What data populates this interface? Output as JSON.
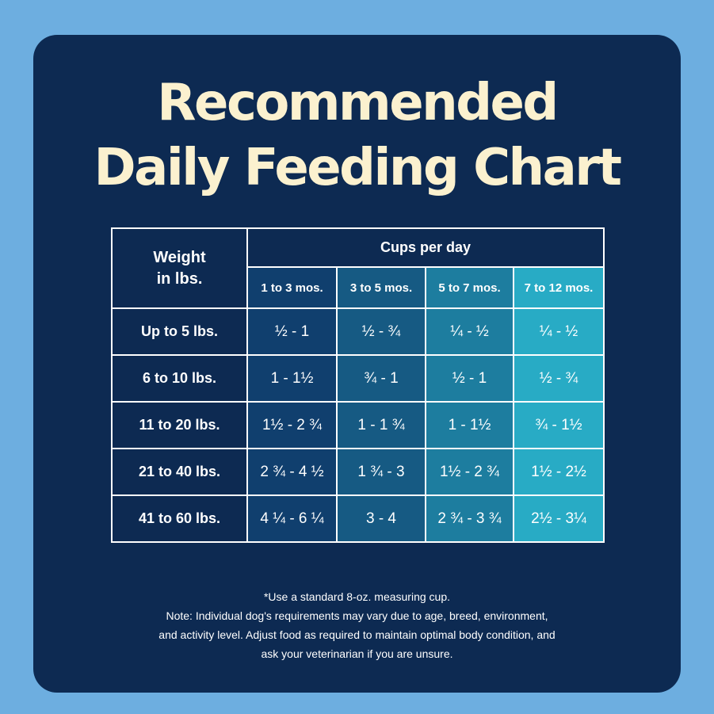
{
  "title": {
    "line1": "Recommended",
    "line2": "Daily Feeding Chart"
  },
  "table": {
    "weight_header_line1": "Weight",
    "weight_header_line2": "in lbs.",
    "group_header": "Cups per day",
    "age_columns": [
      "1 to 3 mos.",
      "3 to 5 mos.",
      "5 to 7 mos.",
      "7 to 12 mos."
    ],
    "rows": [
      {
        "weight": "Up to 5 lbs.",
        "values": [
          "½ - 1",
          "½ - ¾",
          "¼ - ½",
          "¼ - ½"
        ]
      },
      {
        "weight": "6 to 10 lbs.",
        "values": [
          "1 - 1½",
          "¾ - 1",
          "½ - 1",
          "½ - ¾"
        ]
      },
      {
        "weight": "11 to 20 lbs.",
        "values": [
          "1½ - 2 ¾",
          "1 - 1 ¾",
          "1 - 1½",
          "¾ - 1½"
        ]
      },
      {
        "weight": "21 to 40 lbs.",
        "values": [
          "2 ¾ - 4 ½",
          "1 ¾ - 3",
          "1½ - 2 ¾",
          "1½ - 2½"
        ]
      },
      {
        "weight": "41 to 60 lbs.",
        "values": [
          "4 ¼ - 6 ¼",
          "3 - 4",
          "2 ¾ - 3 ¾",
          "2½ - 3¼"
        ]
      }
    ],
    "column_colors": [
      "#103f6e",
      "#165a83",
      "#1d7d9f",
      "#28abc5"
    ]
  },
  "notes": {
    "line1": "*Use a standard 8-oz. measuring cup.",
    "line2": "Note: Individual dog's requirements may vary due to age, breed, environment,",
    "line3": "and activity level. Adjust food as required to maintain optimal body condition, and",
    "line4": "ask your veterinarian if you are unsure."
  },
  "colors": {
    "page_background": "#6daee0",
    "card_background": "#0d2a52",
    "title_text": "#fbf1cf"
  }
}
